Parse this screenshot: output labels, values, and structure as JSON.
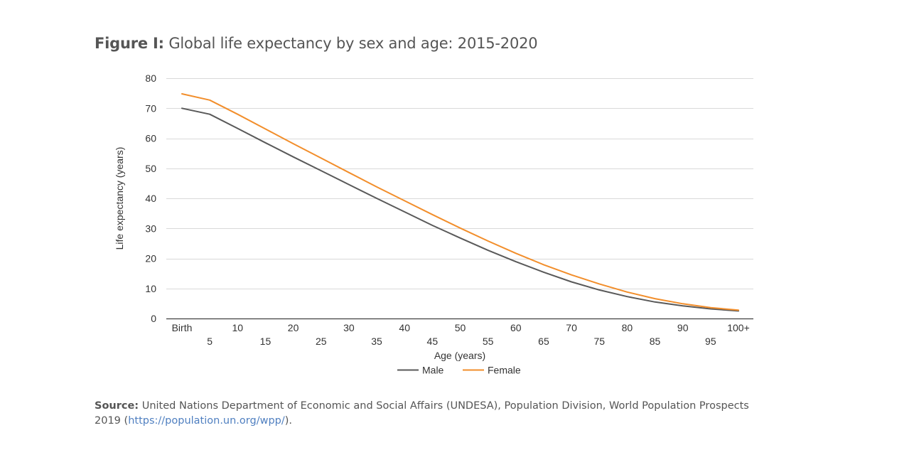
{
  "figure": {
    "label": "Figure I:",
    "title": "Global life expectancy by sex and age: 2015-2020"
  },
  "chart_data": {
    "type": "line",
    "title": "Global life expectancy by sex and age: 2015-2020",
    "xlabel": "Age (years)",
    "ylabel": "Life expectancy (years)",
    "ylim": [
      0,
      80
    ],
    "yticks": [
      0,
      10,
      20,
      30,
      40,
      50,
      60,
      70,
      80
    ],
    "grid": true,
    "legend_position": "bottom",
    "categories": [
      "Birth",
      "5",
      "10",
      "15",
      "20",
      "25",
      "30",
      "35",
      "40",
      "45",
      "50",
      "55",
      "60",
      "65",
      "70",
      "75",
      "80",
      "85",
      "90",
      "95",
      "100+"
    ],
    "series": [
      {
        "name": "Male",
        "color": "#595959",
        "values": [
          70.0,
          68.0,
          63.3,
          58.5,
          53.8,
          49.2,
          44.6,
          40.0,
          35.5,
          31.0,
          26.8,
          22.7,
          18.9,
          15.4,
          12.2,
          9.5,
          7.3,
          5.5,
          4.2,
          3.2,
          2.5
        ]
      },
      {
        "name": "Female",
        "color": "#f28e2b",
        "values": [
          74.8,
          72.7,
          68.0,
          63.1,
          58.2,
          53.4,
          48.6,
          43.8,
          39.2,
          34.6,
          30.1,
          25.8,
          21.7,
          17.9,
          14.5,
          11.5,
          8.8,
          6.6,
          4.9,
          3.6,
          2.8
        ]
      }
    ]
  },
  "source": {
    "label": "Source:",
    "text": "United Nations Department of Economic and Social Affairs (UNDESA), Population Division, World Population Prospects 2019",
    "open_paren": "(",
    "link": "https://population.un.org/wpp/",
    "close": ")."
  }
}
